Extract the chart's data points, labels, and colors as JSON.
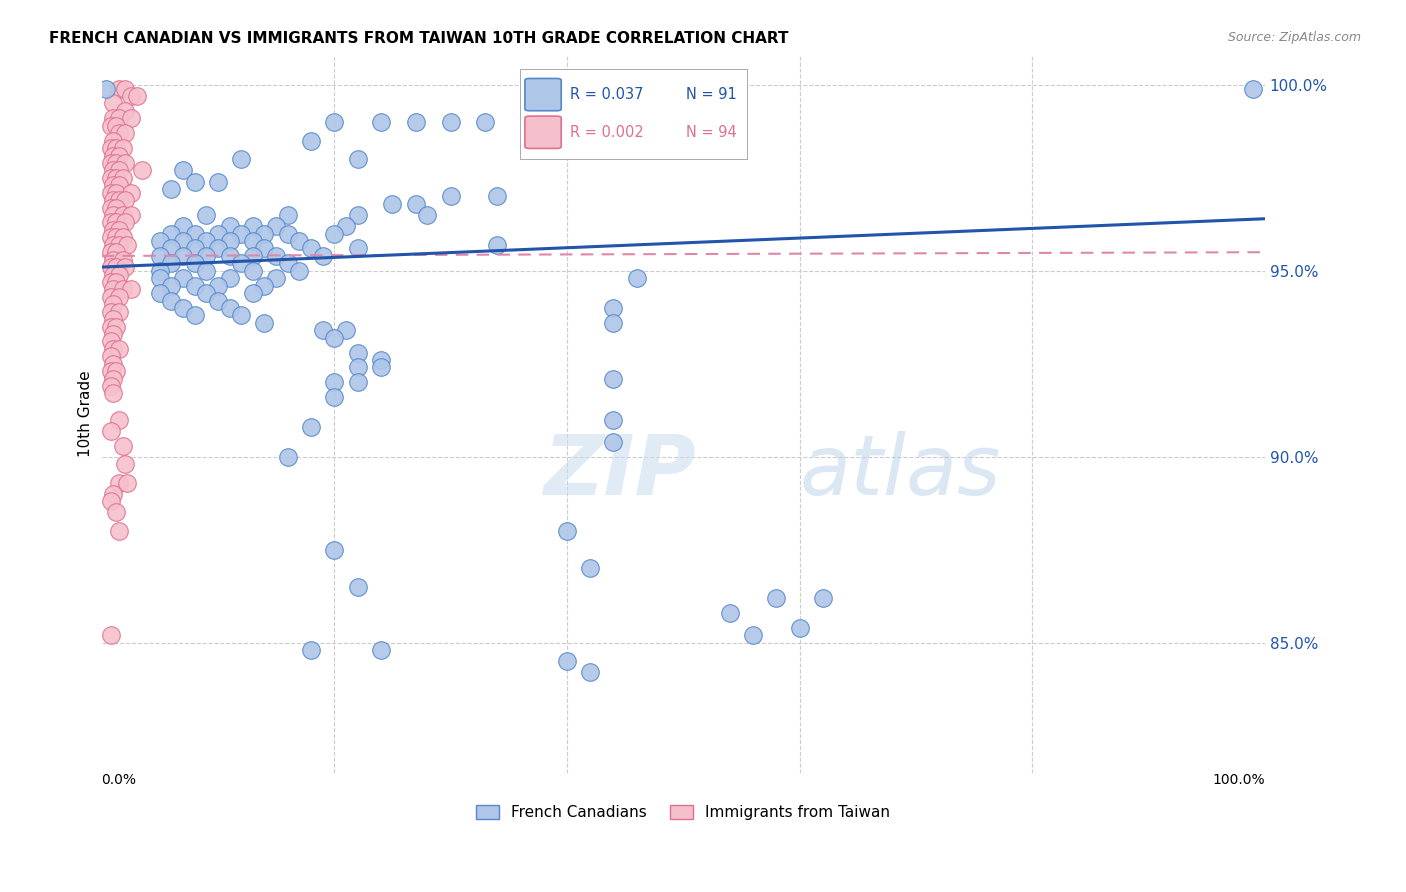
{
  "title": "FRENCH CANADIAN VS IMMIGRANTS FROM TAIWAN 10TH GRADE CORRELATION CHART",
  "source": "Source: ZipAtlas.com",
  "ylabel": "10th Grade",
  "xlim": [
    0.0,
    1.0
  ],
  "ylim": [
    0.815,
    1.008
  ],
  "yticks": [
    0.85,
    0.9,
    0.95,
    1.0
  ],
  "ytick_labels": [
    "85.0%",
    "90.0%",
    "95.0%",
    "100.0%"
  ],
  "watermark_zip": "ZIP",
  "watermark_atlas": "atlas",
  "legend_blue_label": "French Canadians",
  "legend_pink_label": "Immigrants from Taiwan",
  "blue_color": "#aec6e8",
  "blue_edge": "#5588cc",
  "blue_line_color": "#2255aa",
  "pink_color": "#f5c0cc",
  "pink_edge": "#e07090",
  "pink_line_color": "#dd88aa",
  "blue_trend_x": [
    0.0,
    1.0
  ],
  "blue_trend_y": [
    0.951,
    0.964
  ],
  "pink_trend_x": [
    0.0,
    1.0
  ],
  "pink_trend_y": [
    0.954,
    0.955
  ],
  "blue_scatter": [
    [
      0.004,
      0.999
    ],
    [
      0.2,
      0.99
    ],
    [
      0.24,
      0.99
    ],
    [
      0.27,
      0.99
    ],
    [
      0.3,
      0.99
    ],
    [
      0.33,
      0.99
    ],
    [
      0.37,
      0.99
    ],
    [
      0.39,
      0.99
    ],
    [
      0.18,
      0.985
    ],
    [
      0.12,
      0.98
    ],
    [
      0.22,
      0.98
    ],
    [
      0.07,
      0.977
    ],
    [
      0.08,
      0.974
    ],
    [
      0.1,
      0.974
    ],
    [
      0.06,
      0.972
    ],
    [
      0.3,
      0.97
    ],
    [
      0.34,
      0.97
    ],
    [
      0.25,
      0.968
    ],
    [
      0.27,
      0.968
    ],
    [
      0.09,
      0.965
    ],
    [
      0.16,
      0.965
    ],
    [
      0.22,
      0.965
    ],
    [
      0.28,
      0.965
    ],
    [
      0.07,
      0.962
    ],
    [
      0.11,
      0.962
    ],
    [
      0.13,
      0.962
    ],
    [
      0.15,
      0.962
    ],
    [
      0.21,
      0.962
    ],
    [
      0.06,
      0.96
    ],
    [
      0.08,
      0.96
    ],
    [
      0.1,
      0.96
    ],
    [
      0.12,
      0.96
    ],
    [
      0.14,
      0.96
    ],
    [
      0.16,
      0.96
    ],
    [
      0.2,
      0.96
    ],
    [
      0.05,
      0.958
    ],
    [
      0.07,
      0.958
    ],
    [
      0.09,
      0.958
    ],
    [
      0.11,
      0.958
    ],
    [
      0.13,
      0.958
    ],
    [
      0.17,
      0.958
    ],
    [
      0.06,
      0.956
    ],
    [
      0.08,
      0.956
    ],
    [
      0.1,
      0.956
    ],
    [
      0.14,
      0.956
    ],
    [
      0.18,
      0.956
    ],
    [
      0.22,
      0.956
    ],
    [
      0.05,
      0.954
    ],
    [
      0.07,
      0.954
    ],
    [
      0.09,
      0.954
    ],
    [
      0.11,
      0.954
    ],
    [
      0.13,
      0.954
    ],
    [
      0.15,
      0.954
    ],
    [
      0.19,
      0.954
    ],
    [
      0.06,
      0.952
    ],
    [
      0.08,
      0.952
    ],
    [
      0.12,
      0.952
    ],
    [
      0.16,
      0.952
    ],
    [
      0.05,
      0.95
    ],
    [
      0.09,
      0.95
    ],
    [
      0.13,
      0.95
    ],
    [
      0.17,
      0.95
    ],
    [
      0.05,
      0.948
    ],
    [
      0.07,
      0.948
    ],
    [
      0.11,
      0.948
    ],
    [
      0.15,
      0.948
    ],
    [
      0.06,
      0.946
    ],
    [
      0.08,
      0.946
    ],
    [
      0.1,
      0.946
    ],
    [
      0.14,
      0.946
    ],
    [
      0.05,
      0.944
    ],
    [
      0.09,
      0.944
    ],
    [
      0.13,
      0.944
    ],
    [
      0.06,
      0.942
    ],
    [
      0.1,
      0.942
    ],
    [
      0.07,
      0.94
    ],
    [
      0.11,
      0.94
    ],
    [
      0.08,
      0.938
    ],
    [
      0.12,
      0.938
    ],
    [
      0.14,
      0.936
    ],
    [
      0.19,
      0.934
    ],
    [
      0.21,
      0.934
    ],
    [
      0.2,
      0.932
    ],
    [
      0.34,
      0.957
    ],
    [
      0.46,
      0.948
    ],
    [
      0.44,
      0.94
    ],
    [
      0.44,
      0.936
    ],
    [
      0.22,
      0.928
    ],
    [
      0.24,
      0.926
    ],
    [
      0.22,
      0.924
    ],
    [
      0.24,
      0.924
    ],
    [
      0.44,
      0.921
    ],
    [
      0.2,
      0.92
    ],
    [
      0.22,
      0.92
    ],
    [
      0.2,
      0.916
    ],
    [
      0.44,
      0.91
    ],
    [
      0.18,
      0.908
    ],
    [
      0.44,
      0.904
    ],
    [
      0.16,
      0.9
    ],
    [
      0.4,
      0.88
    ],
    [
      0.2,
      0.875
    ],
    [
      0.42,
      0.87
    ],
    [
      0.22,
      0.865
    ],
    [
      0.58,
      0.862
    ],
    [
      0.62,
      0.862
    ],
    [
      0.54,
      0.858
    ],
    [
      0.6,
      0.854
    ],
    [
      0.56,
      0.852
    ],
    [
      0.18,
      0.848
    ],
    [
      0.24,
      0.848
    ],
    [
      0.4,
      0.845
    ],
    [
      0.42,
      0.842
    ],
    [
      0.99,
      0.999
    ]
  ],
  "pink_scatter": [
    [
      0.015,
      0.999
    ],
    [
      0.02,
      0.999
    ],
    [
      0.025,
      0.997
    ],
    [
      0.03,
      0.997
    ],
    [
      0.01,
      0.995
    ],
    [
      0.02,
      0.993
    ],
    [
      0.01,
      0.991
    ],
    [
      0.015,
      0.991
    ],
    [
      0.025,
      0.991
    ],
    [
      0.008,
      0.989
    ],
    [
      0.012,
      0.989
    ],
    [
      0.015,
      0.987
    ],
    [
      0.02,
      0.987
    ],
    [
      0.01,
      0.985
    ],
    [
      0.008,
      0.983
    ],
    [
      0.012,
      0.983
    ],
    [
      0.018,
      0.983
    ],
    [
      0.01,
      0.981
    ],
    [
      0.015,
      0.981
    ],
    [
      0.008,
      0.979
    ],
    [
      0.012,
      0.979
    ],
    [
      0.02,
      0.979
    ],
    [
      0.01,
      0.977
    ],
    [
      0.015,
      0.977
    ],
    [
      0.035,
      0.977
    ],
    [
      0.008,
      0.975
    ],
    [
      0.012,
      0.975
    ],
    [
      0.018,
      0.975
    ],
    [
      0.01,
      0.973
    ],
    [
      0.015,
      0.973
    ],
    [
      0.008,
      0.971
    ],
    [
      0.012,
      0.971
    ],
    [
      0.025,
      0.971
    ],
    [
      0.01,
      0.969
    ],
    [
      0.015,
      0.969
    ],
    [
      0.02,
      0.969
    ],
    [
      0.008,
      0.967
    ],
    [
      0.012,
      0.967
    ],
    [
      0.01,
      0.965
    ],
    [
      0.018,
      0.965
    ],
    [
      0.025,
      0.965
    ],
    [
      0.008,
      0.963
    ],
    [
      0.012,
      0.963
    ],
    [
      0.02,
      0.963
    ],
    [
      0.01,
      0.961
    ],
    [
      0.015,
      0.961
    ],
    [
      0.008,
      0.959
    ],
    [
      0.012,
      0.959
    ],
    [
      0.018,
      0.959
    ],
    [
      0.01,
      0.957
    ],
    [
      0.015,
      0.957
    ],
    [
      0.022,
      0.957
    ],
    [
      0.008,
      0.955
    ],
    [
      0.012,
      0.955
    ],
    [
      0.01,
      0.953
    ],
    [
      0.018,
      0.953
    ],
    [
      0.008,
      0.951
    ],
    [
      0.012,
      0.951
    ],
    [
      0.02,
      0.951
    ],
    [
      0.01,
      0.949
    ],
    [
      0.015,
      0.949
    ],
    [
      0.008,
      0.947
    ],
    [
      0.012,
      0.947
    ],
    [
      0.01,
      0.945
    ],
    [
      0.018,
      0.945
    ],
    [
      0.025,
      0.945
    ],
    [
      0.008,
      0.943
    ],
    [
      0.015,
      0.943
    ],
    [
      0.01,
      0.941
    ],
    [
      0.008,
      0.939
    ],
    [
      0.015,
      0.939
    ],
    [
      0.01,
      0.937
    ],
    [
      0.008,
      0.935
    ],
    [
      0.012,
      0.935
    ],
    [
      0.01,
      0.933
    ],
    [
      0.008,
      0.931
    ],
    [
      0.01,
      0.929
    ],
    [
      0.015,
      0.929
    ],
    [
      0.008,
      0.927
    ],
    [
      0.01,
      0.925
    ],
    [
      0.008,
      0.923
    ],
    [
      0.012,
      0.923
    ],
    [
      0.01,
      0.921
    ],
    [
      0.008,
      0.919
    ],
    [
      0.01,
      0.917
    ],
    [
      0.015,
      0.91
    ],
    [
      0.008,
      0.907
    ],
    [
      0.018,
      0.903
    ],
    [
      0.02,
      0.898
    ],
    [
      0.015,
      0.893
    ],
    [
      0.022,
      0.893
    ],
    [
      0.01,
      0.89
    ],
    [
      0.008,
      0.888
    ],
    [
      0.012,
      0.885
    ],
    [
      0.015,
      0.88
    ],
    [
      0.008,
      0.852
    ]
  ]
}
